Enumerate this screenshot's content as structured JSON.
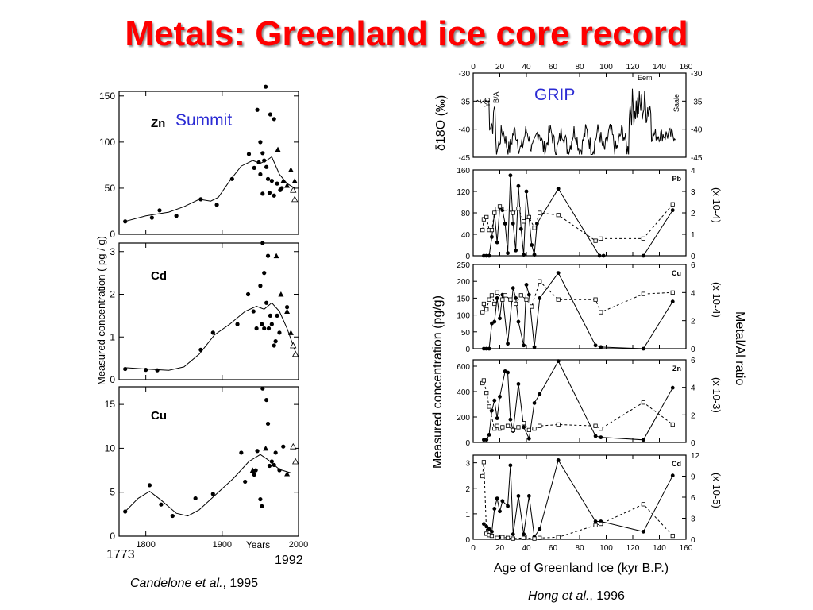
{
  "slide": {
    "title": "Metals: Greenland ice core record",
    "left_year_start": "1773",
    "left_year_end": "1992",
    "left_cite_authors": "Candelone et al.",
    "left_cite_year": ", 1995",
    "right_cite_authors": "Hong et al.",
    "right_cite_year": ", 1996"
  },
  "colors": {
    "title": "#ff0000",
    "annotation_blue": "#2b2bd4",
    "ink": "#000000"
  },
  "chart_data": [
    {
      "type": "scatter",
      "panel": "Zn",
      "site_label": "Summit",
      "ylabel": "Measured concentration  ( pg / g)",
      "xlabel": "Years",
      "xlim": [
        1765,
        2000
      ],
      "ylim": [
        0,
        155
      ],
      "xticks": [
        1800,
        1900,
        2000
      ],
      "yticks": [
        0,
        50,
        100,
        150
      ],
      "points": [
        [
          1773,
          14
        ],
        [
          1808,
          18
        ],
        [
          1818,
          26
        ],
        [
          1840,
          20
        ],
        [
          1872,
          38
        ],
        [
          1893,
          32
        ],
        [
          1913,
          60
        ],
        [
          1935,
          87
        ],
        [
          1942,
          72
        ],
        [
          1948,
          78
        ],
        [
          1950,
          65
        ],
        [
          1953,
          44
        ],
        [
          1955,
          80
        ],
        [
          1958,
          73
        ],
        [
          1960,
          60
        ],
        [
          1962,
          45
        ],
        [
          1965,
          58
        ],
        [
          1968,
          42
        ],
        [
          1972,
          55
        ],
        [
          1976,
          48
        ],
        [
          1978,
          50
        ],
        [
          1946,
          135
        ],
        [
          1950,
          100
        ],
        [
          1953,
          88
        ],
        [
          1957,
          160
        ],
        [
          1963,
          130
        ],
        [
          1968,
          125
        ]
      ],
      "triangles": [
        [
          1973,
          92
        ],
        [
          1980,
          58
        ],
        [
          1985,
          53
        ],
        [
          1990,
          70
        ],
        [
          1995,
          58
        ]
      ],
      "open_triangles": [
        [
          1993,
          48
        ],
        [
          1995,
          38
        ]
      ],
      "curve": [
        [
          1773,
          14
        ],
        [
          1800,
          20
        ],
        [
          1830,
          24
        ],
        [
          1850,
          30
        ],
        [
          1870,
          38
        ],
        [
          1885,
          36
        ],
        [
          1895,
          40
        ],
        [
          1910,
          58
        ],
        [
          1925,
          74
        ],
        [
          1940,
          80
        ],
        [
          1950,
          77
        ],
        [
          1958,
          80
        ],
        [
          1965,
          84
        ],
        [
          1975,
          65
        ],
        [
          1985,
          55
        ],
        [
          1995,
          50
        ]
      ]
    },
    {
      "type": "scatter",
      "panel": "Cd",
      "xlim": [
        1765,
        2000
      ],
      "ylim": [
        0,
        3.2
      ],
      "yticks": [
        0,
        1,
        2,
        3
      ],
      "points": [
        [
          1773,
          0.25
        ],
        [
          1800,
          0.23
        ],
        [
          1815,
          0.22
        ],
        [
          1872,
          0.7
        ],
        [
          1888,
          1.1
        ],
        [
          1920,
          1.3
        ],
        [
          1934,
          2.0
        ],
        [
          1941,
          1.6
        ],
        [
          1945,
          1.2
        ],
        [
          1950,
          2.2
        ],
        [
          1952,
          1.3
        ],
        [
          1953,
          3.2
        ],
        [
          1955,
          1.2
        ],
        [
          1958,
          1.8
        ],
        [
          1961,
          1.2
        ],
        [
          1963,
          1.5
        ],
        [
          1965,
          1.3
        ],
        [
          1968,
          0.8
        ],
        [
          1970,
          0.9
        ],
        [
          1972,
          1.5
        ],
        [
          1975,
          1.1
        ],
        [
          1955,
          2.5
        ],
        [
          1960,
          2.9
        ],
        [
          1985,
          1.7
        ]
      ],
      "triangles": [
        [
          1971,
          2.9
        ],
        [
          1977,
          2.0
        ],
        [
          1985,
          1.6
        ],
        [
          1990,
          1.1
        ]
      ],
      "open_triangles": [
        [
          1993,
          0.8
        ],
        [
          1996,
          0.6
        ]
      ],
      "curve": [
        [
          1773,
          0.28
        ],
        [
          1800,
          0.25
        ],
        [
          1830,
          0.22
        ],
        [
          1850,
          0.3
        ],
        [
          1870,
          0.6
        ],
        [
          1890,
          1.05
        ],
        [
          1910,
          1.3
        ],
        [
          1930,
          1.6
        ],
        [
          1945,
          1.72
        ],
        [
          1955,
          1.65
        ],
        [
          1965,
          1.8
        ],
        [
          1975,
          1.6
        ],
        [
          1985,
          1.2
        ],
        [
          1995,
          0.7
        ]
      ]
    },
    {
      "type": "scatter",
      "panel": "Cu",
      "xlim": [
        1765,
        2000
      ],
      "ylim": [
        0,
        17
      ],
      "xticks": [
        1800,
        1900,
        2000
      ],
      "yticks": [
        0,
        5,
        10,
        15
      ],
      "points": [
        [
          1773,
          2.8
        ],
        [
          1805,
          5.8
        ],
        [
          1820,
          3.6
        ],
        [
          1835,
          2.3
        ],
        [
          1865,
          4.3
        ],
        [
          1888,
          4.8
        ],
        [
          1925,
          9.5
        ],
        [
          1930,
          6.2
        ],
        [
          1942,
          7.0
        ],
        [
          1944,
          7.5
        ],
        [
          1946,
          9.7
        ],
        [
          1950,
          4.2
        ],
        [
          1952,
          3.4
        ],
        [
          1953,
          16.8
        ],
        [
          1958,
          15.5
        ],
        [
          1960,
          12.8
        ],
        [
          1962,
          8.0
        ],
        [
          1965,
          8.5
        ],
        [
          1968,
          8.1
        ],
        [
          1970,
          9.5
        ],
        [
          1975,
          7.5
        ],
        [
          1980,
          10.2
        ]
      ],
      "triangles": [
        [
          1940,
          7.5
        ],
        [
          1957,
          10.0
        ],
        [
          1985,
          7.1
        ]
      ],
      "open_triangles": [
        [
          1993,
          10.2
        ],
        [
          1996,
          8.5
        ]
      ],
      "curve": [
        [
          1773,
          2.8
        ],
        [
          1790,
          4.3
        ],
        [
          1805,
          5.1
        ],
        [
          1820,
          4.1
        ],
        [
          1840,
          2.6
        ],
        [
          1855,
          2.3
        ],
        [
          1870,
          3.0
        ],
        [
          1895,
          5.0
        ],
        [
          1915,
          6.6
        ],
        [
          1935,
          8.5
        ],
        [
          1950,
          9.3
        ],
        [
          1960,
          8.7
        ],
        [
          1975,
          7.6
        ],
        [
          1990,
          7.2
        ]
      ]
    },
    {
      "type": "line",
      "panel": "δ18O",
      "site_label": "GRIP",
      "ylabel": "δ18O (‰)",
      "xlim": [
        0,
        160
      ],
      "ylim": [
        -45,
        -30
      ],
      "xticks": [
        0,
        20,
        40,
        60,
        80,
        100,
        120,
        140,
        160
      ],
      "yticks": [
        -45,
        -40,
        -35,
        -30
      ],
      "annotations": [
        "YD",
        "B/A",
        "Eem",
        "Saale"
      ]
    },
    {
      "type": "line",
      "panel": "Pb",
      "ylabel": "Measured concentration (pg/g)",
      "y2label": "(x 10-4)",
      "xlim": [
        0,
        160
      ],
      "ylim": [
        0,
        160
      ],
      "y2lim": [
        0,
        4
      ],
      "yticks": [
        0,
        40,
        80,
        120,
        160
      ],
      "y2ticks": [
        0,
        1,
        2,
        3,
        4
      ],
      "series": [
        {
          "marker": "filled",
          "x": [
            8,
            10,
            12,
            14,
            16,
            18,
            20,
            22,
            24,
            26,
            28,
            30,
            32,
            34,
            36,
            38,
            40,
            44,
            46,
            48,
            64,
            95,
            98,
            128,
            150
          ],
          "values": [
            0,
            0,
            0,
            35,
            80,
            25,
            90,
            85,
            60,
            5,
            150,
            60,
            10,
            130,
            50,
            2,
            120,
            20,
            2,
            60,
            125,
            0,
            0,
            0,
            85
          ]
        },
        {
          "marker": "open",
          "x": [
            7,
            8,
            10,
            12,
            14,
            16,
            18,
            20,
            24,
            30,
            34,
            38,
            42,
            46,
            50,
            64,
            92,
            96,
            128,
            150
          ],
          "values": [
            1.2,
            1.7,
            1.8,
            1.2,
            1.2,
            2.0,
            2.2,
            2.3,
            2.2,
            2.0,
            2.2,
            1.6,
            1.8,
            1.3,
            2.0,
            1.9,
            0.7,
            0.8,
            0.8,
            2.4
          ]
        }
      ]
    },
    {
      "type": "line",
      "panel": "Cu",
      "y2label": "(x 10-4)",
      "xlim": [
        0,
        160
      ],
      "ylim": [
        0,
        250
      ],
      "y2lim": [
        0,
        6
      ],
      "yticks": [
        0,
        50,
        100,
        150,
        200,
        250
      ],
      "y2ticks": [
        0,
        2,
        4,
        6
      ],
      "series": [
        {
          "marker": "filled",
          "x": [
            8,
            10,
            12,
            14,
            16,
            18,
            20,
            22,
            26,
            30,
            32,
            34,
            38,
            40,
            42,
            46,
            50,
            64,
            92,
            96,
            128,
            150
          ],
          "values": [
            0,
            0,
            0,
            75,
            80,
            150,
            90,
            160,
            15,
            180,
            150,
            80,
            10,
            190,
            160,
            5,
            150,
            225,
            10,
            5,
            0,
            140
          ]
        },
        {
          "marker": "open",
          "x": [
            7,
            8,
            10,
            12,
            14,
            16,
            18,
            22,
            24,
            28,
            32,
            36,
            40,
            44,
            50,
            64,
            92,
            96,
            128,
            150
          ],
          "values": [
            2.6,
            3.2,
            2.8,
            3.5,
            3.8,
            3.2,
            4.0,
            3.5,
            3.8,
            3.5,
            3.2,
            3.8,
            3.5,
            3.0,
            4.8,
            3.5,
            3.5,
            2.6,
            3.9,
            4.0
          ]
        }
      ]
    },
    {
      "type": "line",
      "panel": "Zn",
      "y2label": "(x 10-3)",
      "xlim": [
        0,
        160
      ],
      "ylim": [
        0,
        650
      ],
      "y2lim": [
        0,
        6
      ],
      "yticks": [
        0,
        200,
        400,
        600
      ],
      "y2ticks": [
        0,
        2,
        4,
        6
      ],
      "series": [
        {
          "marker": "filled",
          "x": [
            8,
            10,
            12,
            14,
            16,
            18,
            20,
            24,
            26,
            28,
            30,
            34,
            38,
            42,
            46,
            50,
            64,
            92,
            96,
            128,
            150
          ],
          "values": [
            20,
            20,
            60,
            250,
            330,
            190,
            360,
            560,
            550,
            180,
            90,
            460,
            120,
            30,
            310,
            380,
            640,
            50,
            40,
            20,
            430
          ]
        },
        {
          "marker": "open",
          "x": [
            7,
            8,
            10,
            12,
            16,
            18,
            20,
            22,
            26,
            30,
            34,
            38,
            42,
            46,
            50,
            64,
            92,
            96,
            128,
            150
          ],
          "values": [
            4.3,
            4.5,
            3.6,
            2.6,
            1.0,
            1.2,
            1.0,
            1.1,
            1.2,
            0.9,
            1.1,
            1.4,
            0.9,
            1.0,
            1.2,
            1.3,
            1.2,
            1.0,
            2.9,
            1.3
          ]
        }
      ]
    },
    {
      "type": "line",
      "panel": "Cd",
      "y2label": "(x 10-5)",
      "xlabel": "Age of Greenland Ice (kyr B.P.)",
      "y_right_title": "Metal/Al ratio",
      "xlim": [
        0,
        160
      ],
      "ylim": [
        0,
        3.3
      ],
      "y2lim": [
        0,
        12
      ],
      "xticks": [
        0,
        20,
        40,
        60,
        80,
        100,
        120,
        140,
        160
      ],
      "yticks": [
        0,
        1,
        2,
        3
      ],
      "y2ticks": [
        0,
        3,
        6,
        9,
        12
      ],
      "series": [
        {
          "marker": "filled",
          "x": [
            8,
            10,
            12,
            14,
            16,
            18,
            20,
            22,
            26,
            28,
            30,
            34,
            38,
            42,
            46,
            50,
            64,
            92,
            96,
            128,
            150
          ],
          "values": [
            0.6,
            0.5,
            0.4,
            0.3,
            1.2,
            1.6,
            1.1,
            1.5,
            1.3,
            2.9,
            0.2,
            1.7,
            0.2,
            1.7,
            0.1,
            0.4,
            3.1,
            0.7,
            0.7,
            0.3,
            2.5
          ]
        },
        {
          "marker": "open",
          "x": [
            7,
            8,
            10,
            12,
            14,
            18,
            22,
            26,
            30,
            38,
            46,
            50,
            64,
            92,
            96,
            128,
            150
          ],
          "values": [
            9.0,
            11.0,
            0.8,
            0.6,
            0.5,
            0.2,
            0.3,
            0.2,
            0.1,
            0.2,
            0.1,
            0.2,
            0.3,
            2.0,
            2.2,
            5.0,
            0.5
          ]
        }
      ]
    }
  ]
}
